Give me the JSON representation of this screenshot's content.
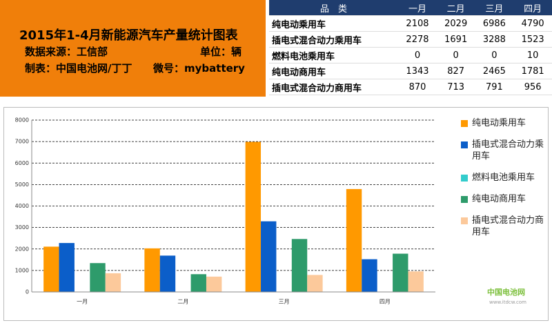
{
  "header": {
    "title": "2015年1-4月新能源汽车产量统计图表",
    "source": "数据来源：工信部",
    "unit": "单位：辆",
    "maker": "制表：中国电池网/丁丁",
    "wechat": "微号：mybattery"
  },
  "table": {
    "columns": [
      "品　类",
      "一月",
      "二月",
      "三月",
      "四月"
    ],
    "rows": [
      [
        "纯电动乘用车",
        2108,
        2029,
        6986,
        4790
      ],
      [
        "插电式混合动力乘用车",
        2278,
        1691,
        3288,
        1523
      ],
      [
        "燃料电池乘用车",
        0,
        0,
        0,
        10
      ],
      [
        "纯电动商用车",
        1343,
        827,
        2465,
        1781
      ],
      [
        "插电式混合动力商用车",
        870,
        713,
        791,
        956
      ]
    ]
  },
  "chart_data": {
    "type": "bar",
    "categories": [
      "一月",
      "二月",
      "三月",
      "四月"
    ],
    "series": [
      {
        "name": "纯电动乘用车",
        "color": "#ff9900",
        "values": [
          2108,
          2029,
          6986,
          4790
        ]
      },
      {
        "name": "插电式混合动力乘用车",
        "color": "#0b5ec9",
        "values": [
          2278,
          1691,
          3288,
          1523
        ]
      },
      {
        "name": "燃料电池乘用车",
        "color": "#33cccc",
        "values": [
          0,
          0,
          0,
          10
        ]
      },
      {
        "name": "纯电动商用车",
        "color": "#2e9b6b",
        "values": [
          1343,
          827,
          2465,
          1781
        ]
      },
      {
        "name": "插电式混合动力商用车",
        "color": "#fcc99b",
        "values": [
          870,
          713,
          791,
          956
        ]
      }
    ],
    "ylim": [
      0,
      8000
    ],
    "yticks": [
      0,
      1000,
      2000,
      3000,
      4000,
      5000,
      6000,
      7000,
      8000
    ],
    "grid": true,
    "legend": "right"
  },
  "watermark": {
    "name": "中国电池网",
    "url": "www.itdcw.com"
  }
}
